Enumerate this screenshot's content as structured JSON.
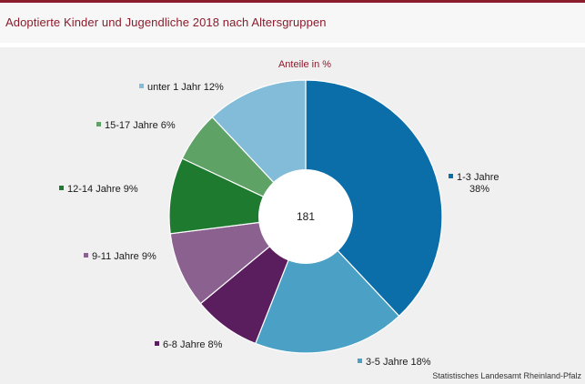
{
  "title": "Adoptierte Kinder und Jugendliche 2018 nach Altersgruppen",
  "source": "Statistisches Landesamt Rheinland-Pfalz",
  "chart_data": {
    "type": "pie",
    "subtitle": "Anteile in %",
    "center_label": "181",
    "slices": [
      {
        "name": "1-3 Jahre",
        "value": 38,
        "label": "1-3 Jahre",
        "label2": "38%",
        "color": "#0b6ea8"
      },
      {
        "name": "3-5 Jahre",
        "value": 18,
        "label": "3-5 Jahre 18%",
        "color": "#4ba0c6"
      },
      {
        "name": "6-8 Jahre",
        "value": 8,
        "label": "6-8 Jahre 8%",
        "color": "#5a1e5e"
      },
      {
        "name": "9-11 Jahre",
        "value": 9,
        "label": "9-11 Jahre 9%",
        "color": "#8b6190"
      },
      {
        "name": "12-14 Jahre",
        "value": 9,
        "label": "12-14 Jahre 9%",
        "color": "#1e7a2e"
      },
      {
        "name": "15-17 Jahre",
        "value": 6,
        "label": "15-17 Jahre 6%",
        "color": "#5ea265"
      },
      {
        "name": "unter 1 Jahr",
        "value": 12,
        "label": "unter 1 Jahr 12%",
        "color": "#82bcd8"
      }
    ]
  }
}
